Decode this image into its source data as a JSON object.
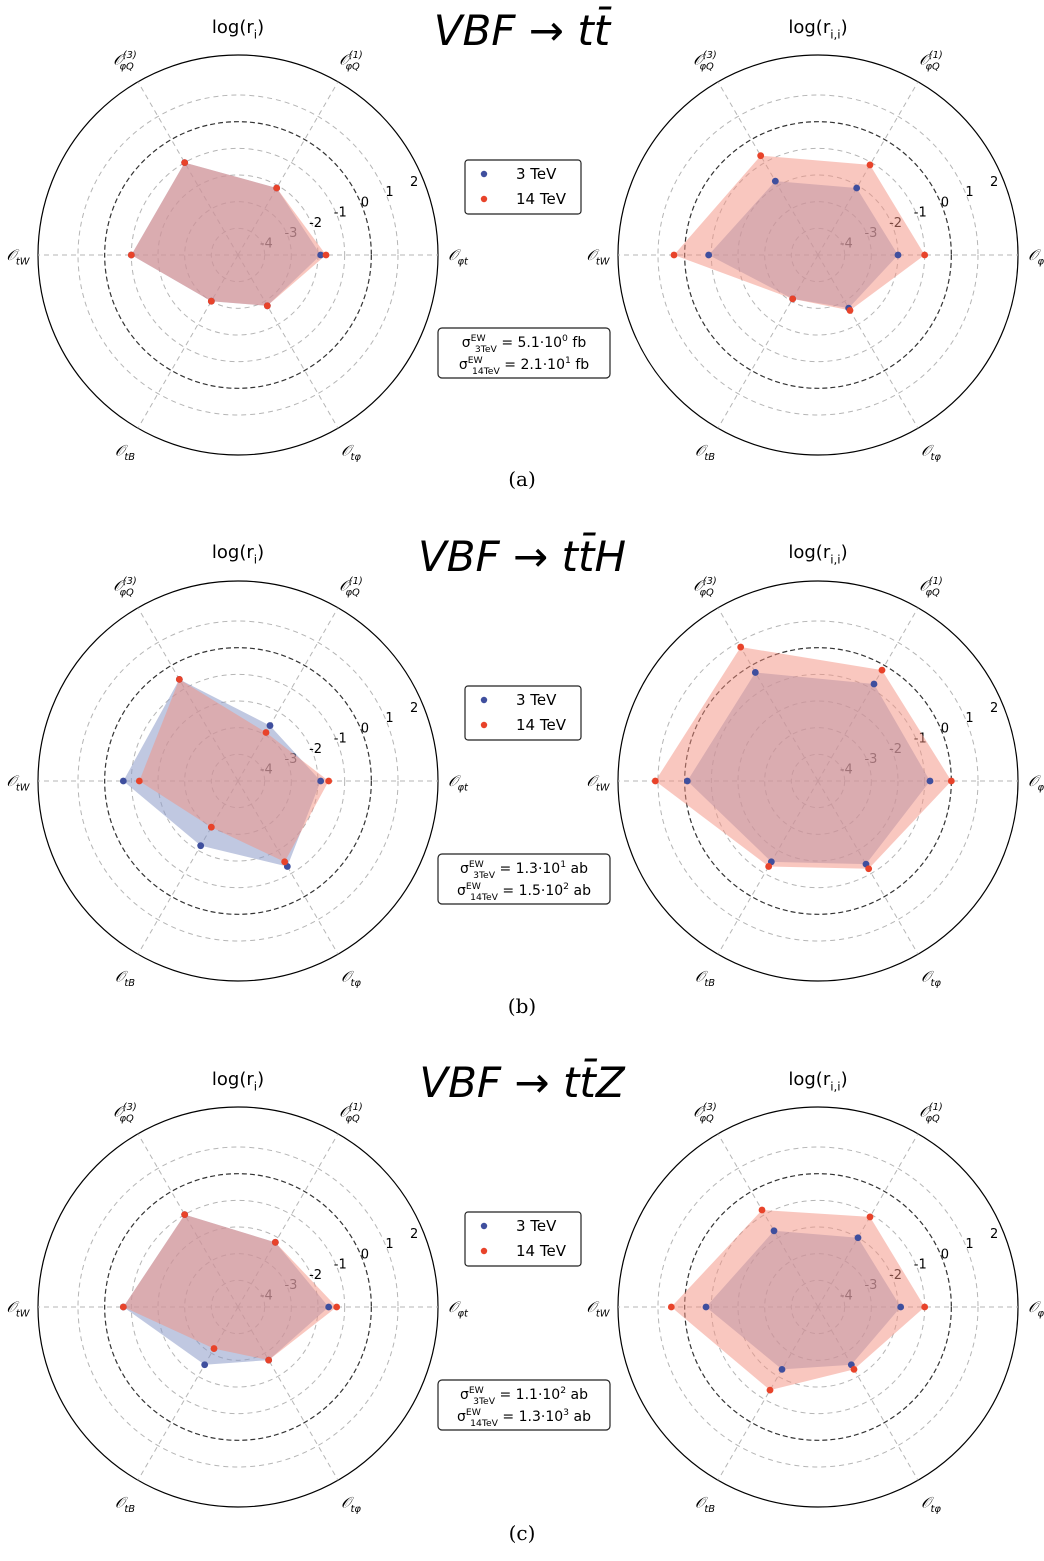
{
  "labels": {
    "left_title": "log(r_i)",
    "right_title": "log(r_{i,i})",
    "axes": [
      "𝒪_{φt}",
      "𝒪^{(1)}_{φQ}",
      "𝒪^{(3)}_{φQ}",
      "𝒪_{tW}",
      "𝒪_{tB}",
      "𝒪_{tφ}"
    ],
    "radial_ticks": [
      "-4",
      "-3",
      "-2",
      "-1",
      "0",
      "1",
      "2"
    ]
  },
  "legend": {
    "entries": [
      {
        "label": "3 TeV",
        "color": "#3f4f9e"
      },
      {
        "label": "14 TeV",
        "color": "#e8432a"
      }
    ]
  },
  "colors": {
    "series_3tev_fill": "#8c9ac8",
    "series_14tev_fill": "#f48f80",
    "series_3tev_point": "#3f4f9e",
    "series_14tev_point": "#e8432a"
  },
  "chart_data": [
    {
      "type": "radar",
      "panel": "(a)",
      "process_title": "VBF → tt̄",
      "sigma": [
        "σ^{EW}_{3TeV} = 5.1·10^0 fb",
        "σ^{EW}_{14TeV} = 2.1·10^1 fb"
      ],
      "subplots": [
        {
          "title": "log(r_i)",
          "rlim": [
            -5,
            2.5
          ],
          "categories": [
            "𝒪_{φt}",
            "𝒪^{(1)}_{φQ}",
            "𝒪^{(3)}_{φQ}",
            "𝒪_{tW}",
            "𝒪_{tB}",
            "𝒪_{tφ}"
          ],
          "series": [
            {
              "name": "3 TeV",
              "values": [
                -1.9,
                -2.1,
                -1.0,
                -1.0,
                -3.0,
                -2.8
              ]
            },
            {
              "name": "14 TeV",
              "values": [
                -1.7,
                -2.1,
                -1.0,
                -1.0,
                -3.0,
                -2.8
              ]
            }
          ]
        },
        {
          "title": "log(r_{i,i})",
          "rlim": [
            -5,
            2.5
          ],
          "categories": [
            "𝒪_{φt}",
            "𝒪^{(1)}_{φQ}",
            "𝒪^{(3)}_{φQ}",
            "𝒪_{tW}",
            "𝒪_{tB}",
            "𝒪_{tφ}"
          ],
          "series": [
            {
              "name": "3 TeV",
              "values": [
                -2.0,
                -2.1,
                -1.8,
                -0.9,
                -3.1,
                -2.7
              ]
            },
            {
              "name": "14 TeV",
              "values": [
                -1.0,
                -1.1,
                -0.7,
                0.4,
                -3.1,
                -2.6
              ]
            }
          ]
        }
      ]
    },
    {
      "type": "radar",
      "panel": "(b)",
      "process_title": "VBF → tt̄H",
      "sigma": [
        "σ^{EW}_{3TeV} = 1.3·10^1 ab",
        "σ^{EW}_{14TeV} = 1.5·10^2 ab"
      ],
      "subplots": [
        {
          "title": "log(r_i)",
          "rlim": [
            -5,
            2.5
          ],
          "categories": [
            "𝒪_{φt}",
            "𝒪^{(1)}_{φQ}",
            "𝒪^{(3)}_{φQ}",
            "𝒪_{tW}",
            "𝒪_{tB}",
            "𝒪_{tφ}"
          ],
          "series": [
            {
              "name": "3 TeV",
              "values": [
                -1.9,
                -2.6,
                -0.6,
                -0.7,
                -2.2,
                -1.3
              ]
            },
            {
              "name": "14 TeV",
              "values": [
                -1.6,
                -2.9,
                -0.6,
                -1.3,
                -3.0,
                -1.5
              ]
            }
          ]
        },
        {
          "title": "log(r_{i,i})",
          "rlim": [
            -5,
            2.5
          ],
          "categories": [
            "𝒪_{φt}",
            "𝒪^{(1)}_{φQ}",
            "𝒪^{(3)}_{φQ}",
            "𝒪_{tW}",
            "𝒪_{tB}",
            "𝒪_{tφ}"
          ],
          "series": [
            {
              "name": "3 TeV",
              "values": [
                -0.8,
                -0.8,
                -0.3,
                -0.1,
                -1.5,
                -1.4
              ]
            },
            {
              "name": "14 TeV",
              "values": [
                0.0,
                -0.2,
                0.8,
                1.1,
                -1.3,
                -1.2
              ]
            }
          ]
        }
      ]
    },
    {
      "type": "radar",
      "panel": "(c)",
      "process_title": "VBF → tt̄Z",
      "sigma": [
        "σ^{EW}_{3TeV} = 1.1·10^2 ab",
        "σ^{EW}_{14TeV} = 1.3·10^3 ab"
      ],
      "subplots": [
        {
          "title": "log(r_i)",
          "rlim": [
            -5,
            2.5
          ],
          "categories": [
            "𝒪_{φt}",
            "𝒪^{(1)}_{φQ}",
            "𝒪^{(3)}_{φQ}",
            "𝒪_{tW}",
            "𝒪_{tB}",
            "𝒪_{tφ}"
          ],
          "series": [
            {
              "name": "3 TeV",
              "values": [
                -1.6,
                -2.2,
                -1.0,
                -0.7,
                -2.5,
                -2.7
              ]
            },
            {
              "name": "14 TeV",
              "values": [
                -1.3,
                -2.2,
                -1.0,
                -0.7,
                -3.2,
                -2.7
              ]
            }
          ]
        },
        {
          "title": "log(r_{i,i})",
          "rlim": [
            -5,
            2.5
          ],
          "categories": [
            "𝒪_{φt}",
            "𝒪^{(1)}_{φQ}",
            "𝒪^{(3)}_{φQ}",
            "𝒪_{tW}",
            "𝒪_{tB}",
            "𝒪_{tφ}"
          ],
          "series": [
            {
              "name": "3 TeV",
              "values": [
                -1.9,
                -2.0,
                -1.7,
                -0.8,
                -2.3,
                -2.5
              ]
            },
            {
              "name": "14 TeV",
              "values": [
                -1.0,
                -1.1,
                -0.8,
                0.5,
                -1.4,
                -2.3
              ]
            }
          ]
        }
      ]
    }
  ]
}
